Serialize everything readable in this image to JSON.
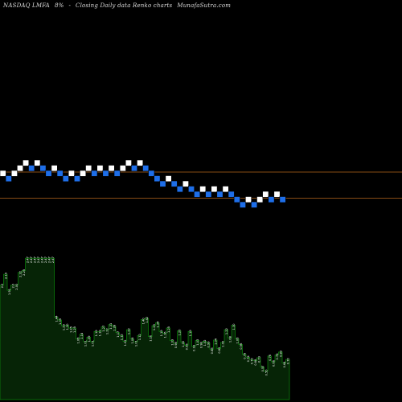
{
  "header": {
    "ticker": "NASDAQ LMFA",
    "change": "8%",
    "delta": "-",
    "chart_kind": "Closing Daily data Renko charts",
    "site": "MunafaSutra.com"
  },
  "colors": {
    "background": "#000000",
    "up_brick": "#ffffff",
    "down_brick": "#1e6ee8",
    "brick_edge": "#000000",
    "reference_line": "#b5651d",
    "volume_fill": "#062406",
    "volume_edge": "#0c8a0c",
    "volume_label": "#ffffff"
  },
  "chart_data": [
    {
      "type": "renko",
      "bricks": [
        {
          "col": 0,
          "level": 0,
          "dir": "up"
        },
        {
          "col": 1,
          "level": -1,
          "dir": "down"
        },
        {
          "col": 2,
          "level": 0,
          "dir": "up"
        },
        {
          "col": 3,
          "level": 1,
          "dir": "up"
        },
        {
          "col": 4,
          "level": 2,
          "dir": "up"
        },
        {
          "col": 5,
          "level": 1,
          "dir": "down"
        },
        {
          "col": 6,
          "level": 2,
          "dir": "up"
        },
        {
          "col": 7,
          "level": 1,
          "dir": "down"
        },
        {
          "col": 8,
          "level": 0,
          "dir": "down"
        },
        {
          "col": 9,
          "level": 1,
          "dir": "up"
        },
        {
          "col": 10,
          "level": 0,
          "dir": "down"
        },
        {
          "col": 11,
          "level": -1,
          "dir": "down"
        },
        {
          "col": 12,
          "level": 0,
          "dir": "up"
        },
        {
          "col": 13,
          "level": -1,
          "dir": "down"
        },
        {
          "col": 14,
          "level": 0,
          "dir": "up"
        },
        {
          "col": 15,
          "level": 1,
          "dir": "up"
        },
        {
          "col": 16,
          "level": 0,
          "dir": "down"
        },
        {
          "col": 17,
          "level": 1,
          "dir": "up"
        },
        {
          "col": 18,
          "level": 0,
          "dir": "down"
        },
        {
          "col": 19,
          "level": 1,
          "dir": "up"
        },
        {
          "col": 20,
          "level": 0,
          "dir": "down"
        },
        {
          "col": 21,
          "level": 1,
          "dir": "up"
        },
        {
          "col": 22,
          "level": 2,
          "dir": "up"
        },
        {
          "col": 23,
          "level": 1,
          "dir": "down"
        },
        {
          "col": 24,
          "level": 2,
          "dir": "up"
        },
        {
          "col": 25,
          "level": 1,
          "dir": "down"
        },
        {
          "col": 26,
          "level": 0,
          "dir": "down"
        },
        {
          "col": 27,
          "level": -1,
          "dir": "down"
        },
        {
          "col": 28,
          "level": -2,
          "dir": "down"
        },
        {
          "col": 29,
          "level": -1,
          "dir": "up"
        },
        {
          "col": 30,
          "level": -2,
          "dir": "down"
        },
        {
          "col": 31,
          "level": -3,
          "dir": "down"
        },
        {
          "col": 32,
          "level": -2,
          "dir": "up"
        },
        {
          "col": 33,
          "level": -3,
          "dir": "down"
        },
        {
          "col": 34,
          "level": -4,
          "dir": "down"
        },
        {
          "col": 35,
          "level": -3,
          "dir": "up"
        },
        {
          "col": 36,
          "level": -4,
          "dir": "down"
        },
        {
          "col": 37,
          "level": -3,
          "dir": "up"
        },
        {
          "col": 38,
          "level": -4,
          "dir": "down"
        },
        {
          "col": 39,
          "level": -3,
          "dir": "up"
        },
        {
          "col": 40,
          "level": -4,
          "dir": "down"
        },
        {
          "col": 41,
          "level": -5,
          "dir": "down"
        },
        {
          "col": 42,
          "level": -6,
          "dir": "down"
        },
        {
          "col": 43,
          "level": -5,
          "dir": "up"
        },
        {
          "col": 44,
          "level": -6,
          "dir": "down"
        },
        {
          "col": 45,
          "level": -5,
          "dir": "up"
        },
        {
          "col": 46,
          "level": -4,
          "dir": "up"
        },
        {
          "col": 47,
          "level": -5,
          "dir": "down"
        },
        {
          "col": 48,
          "level": -4,
          "dir": "up"
        },
        {
          "col": 49,
          "level": -5,
          "dir": "down"
        }
      ],
      "reference_levels": [
        1,
        -4
      ],
      "grid": false,
      "legend": "none"
    },
    {
      "type": "bar",
      "series_role": "volume",
      "values": [
        2.0,
        2.19,
        1.91,
        2.0,
        2.0,
        2.22,
        2.25,
        2.47,
        2.47,
        2.47,
        2.47,
        2.47,
        2.47,
        2.47,
        2.47,
        1.44,
        1.39,
        1.29,
        1.3,
        1.25,
        1.25,
        1.06,
        1.14,
        1.01,
        1.09,
        1.01,
        1.19,
        1.19,
        1.27,
        1.22,
        1.31,
        1.28,
        1.17,
        1.12,
        1.02,
        1.22,
        1.06,
        1.01,
        1.12,
        1.4,
        1.42,
        1.1,
        1.29,
        1.34,
        1.19,
        1.16,
        1.25,
        1.03,
        0.98,
        1.2,
        1.0,
        0.95,
        1.19,
        0.93,
        1.03,
        0.98,
        1.02,
        0.99,
        0.88,
        1.04,
        0.89,
        1.0,
        1.22,
        1.08,
        1.3,
        1.06,
        0.96,
        0.79,
        0.74,
        0.7,
        0.68,
        0.73,
        0.57,
        0.5,
        0.76,
        0.66,
        0.78,
        0.83,
        0.64,
        0.7
      ],
      "labels": [
        "2.0",
        "2.19",
        "1.91",
        "2.0",
        "2.00",
        "2.22",
        "2.25",
        "2.47",
        "2.47",
        "2.47",
        "2.47",
        "2.47",
        "2.47",
        "2.47",
        "2.47",
        "1.44",
        "1.39",
        "1.29",
        "1.30",
        "1.25",
        "1.25",
        "1.06",
        "1.14",
        "1.01",
        "1.09",
        "1.01",
        "1.19",
        "1.19",
        "1.27",
        "1.22",
        "1.31",
        "1.28",
        "1.17",
        "1.12",
        "1.02",
        "1.22",
        "1.06",
        "1.01",
        "1.12",
        "1.40",
        "1.42",
        "1.10",
        "1.29",
        "1.34",
        "1.19",
        "1.16",
        "1.25",
        "1.03",
        "0.98",
        "1.20",
        "1.00",
        "0.95",
        "1.19",
        "0.93",
        "1.03",
        "0.98",
        "1.02",
        "0.99",
        "0.88",
        "1.04",
        "0.89",
        "1.00",
        "1.22",
        "1.08",
        "1.30",
        "1.06",
        "0.96",
        "0.79",
        "0.74",
        "0.70",
        "0.68",
        "0.73",
        "0.57",
        "0.50",
        "0.76",
        "0.66",
        "0.78",
        "0.83",
        "0.64",
        "0.70"
      ],
      "grid": false,
      "legend": "none"
    }
  ]
}
